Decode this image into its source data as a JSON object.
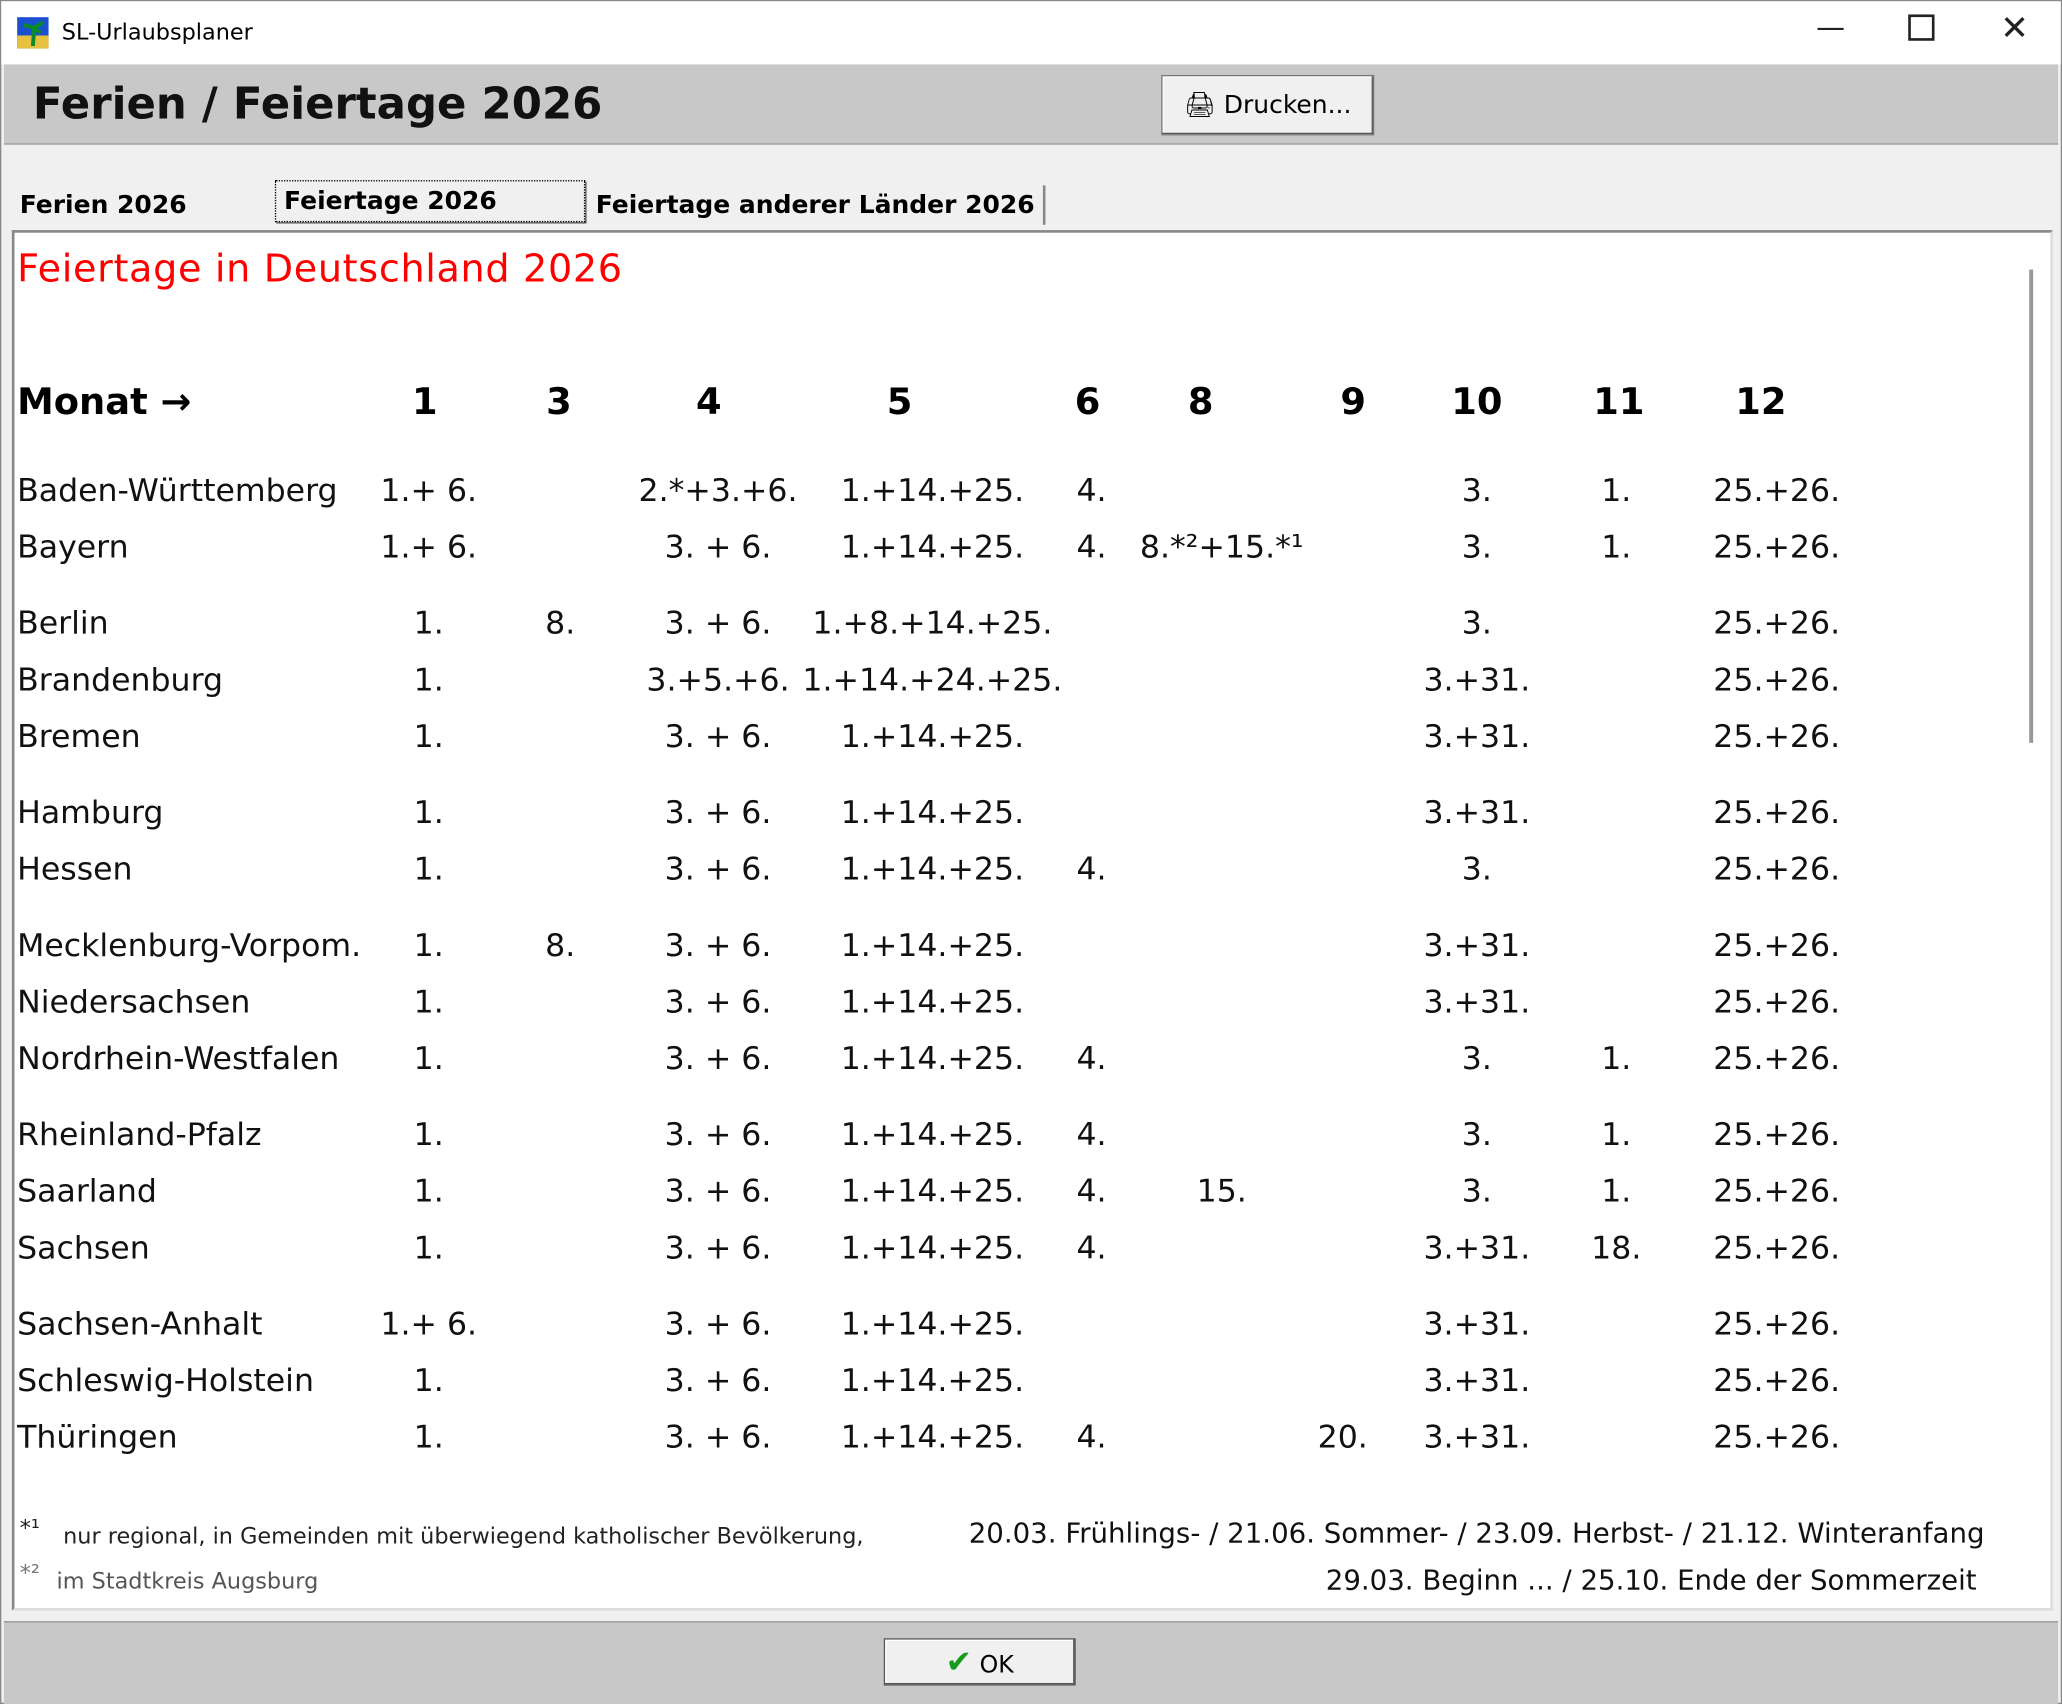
{
  "window": {
    "title": "SL-Urlaubsplaner"
  },
  "header": {
    "title": "Ferien / Feiertage 2026",
    "print_button": "Drucken..."
  },
  "tabs": [
    "Ferien 2026",
    "Feiertage 2026",
    "Feiertage anderer Länder 2026"
  ],
  "content": {
    "title": "Feiertage in Deutschland 2026",
    "table": {
      "header": [
        "Monat →",
        "1",
        "3",
        "4",
        "5",
        "6",
        "8",
        "9",
        "10",
        "11",
        "12"
      ],
      "rows": [
        {
          "state": "Baden-Württemberg",
          "days": [
            "1.+ 6.",
            null,
            "2.*+3.+6.",
            "1.+14.+25.",
            "4.",
            null,
            null,
            "3.",
            "1.",
            "25.+26."
          ]
        },
        {
          "state": "Bayern",
          "days": [
            "1.+ 6.",
            null,
            "3. + 6.",
            "1.+14.+25.",
            "4.",
            "8.*²+15.*¹",
            null,
            "3.",
            "1.",
            "25.+26."
          ]
        },
        {
          "state": "Berlin",
          "days": [
            "1.",
            "8.",
            "3. + 6.",
            "1.+8.+14.+25.",
            null,
            null,
            null,
            "3.",
            null,
            "25.+26."
          ]
        },
        {
          "state": "Brandenburg",
          "days": [
            "1.",
            null,
            "3.+5.+6.",
            "1.+14.+24.+25.",
            null,
            null,
            null,
            "3.+31.",
            null,
            "25.+26."
          ]
        },
        {
          "state": "Bremen",
          "days": [
            "1.",
            null,
            "3. + 6.",
            "1.+14.+25.",
            null,
            null,
            null,
            "3.+31.",
            null,
            "25.+26."
          ]
        },
        {
          "state": "Hamburg",
          "days": [
            "1.",
            null,
            "3. + 6.",
            "1.+14.+25.",
            null,
            null,
            null,
            "3.+31.",
            null,
            "25.+26."
          ]
        },
        {
          "state": "Hessen",
          "days": [
            "1.",
            null,
            "3. + 6.",
            "1.+14.+25.",
            "4.",
            null,
            null,
            "3.",
            null,
            "25.+26."
          ]
        },
        {
          "state": "Mecklenburg-Vorpom.",
          "days": [
            "1.",
            "8.",
            "3. + 6.",
            "1.+14.+25.",
            null,
            null,
            null,
            "3.+31.",
            null,
            "25.+26."
          ]
        },
        {
          "state": "Niedersachsen",
          "days": [
            "1.",
            null,
            "3. + 6.",
            "1.+14.+25.",
            null,
            null,
            null,
            "3.+31.",
            null,
            "25.+26."
          ]
        },
        {
          "state": "Nordrhein-Westfalen",
          "days": [
            "1.",
            null,
            "3. + 6.",
            "1.+14.+25.",
            "4.",
            null,
            null,
            "3.",
            "1.",
            "25.+26."
          ]
        },
        {
          "state": "Rheinland-Pfalz",
          "days": [
            "1.",
            null,
            "3. + 6.",
            "1.+14.+25.",
            "4.",
            null,
            null,
            "3.",
            "1.",
            "25.+26."
          ]
        },
        {
          "state": "Saarland",
          "days": [
            "1.",
            null,
            "3. + 6.",
            "1.+14.+25.",
            "4.",
            "15.",
            null,
            "3.",
            "1.",
            "25.+26."
          ]
        },
        {
          "state": "Sachsen",
          "days": [
            "1.",
            null,
            "3. + 6.",
            "1.+14.+25.",
            "4.",
            null,
            null,
            "3.+31.",
            "18.",
            "25.+26."
          ]
        },
        {
          "state": "Sachsen-Anhalt",
          "days": [
            "1.+ 6.",
            null,
            "3. + 6.",
            "1.+14.+25.",
            null,
            null,
            null,
            "3.+31.",
            null,
            "25.+26."
          ]
        },
        {
          "state": "Schleswig-Holstein",
          "days": [
            "1.",
            null,
            "3. + 6.",
            "1.+14.+25.",
            null,
            null,
            null,
            "3.+31.",
            null,
            "25.+26."
          ]
        },
        {
          "state": "Thüringen",
          "days": [
            "1.",
            null,
            "3. + 6.",
            "1.+14.+25.",
            "4.",
            null,
            "20.",
            "3.+31.",
            null,
            "25.+26."
          ]
        }
      ]
    },
    "footnotes": [
      {
        "marker": "*¹",
        "text": "nur regional, in Gemeinden mit  überwiegend katholischer Bevölkerung,"
      },
      {
        "marker": "*²",
        "text": "im Stadtkreis Augsburg"
      }
    ],
    "seasons": [
      "20.03. Frühlings-  /  21.06. Sommer-  /  23.09. Herbst-  /  21.12. Winteranfang",
      "29.03. Beginn ...  /  25.10. Ende der Sommerzeit"
    ]
  },
  "footer": {
    "ok_button": "OK"
  }
}
